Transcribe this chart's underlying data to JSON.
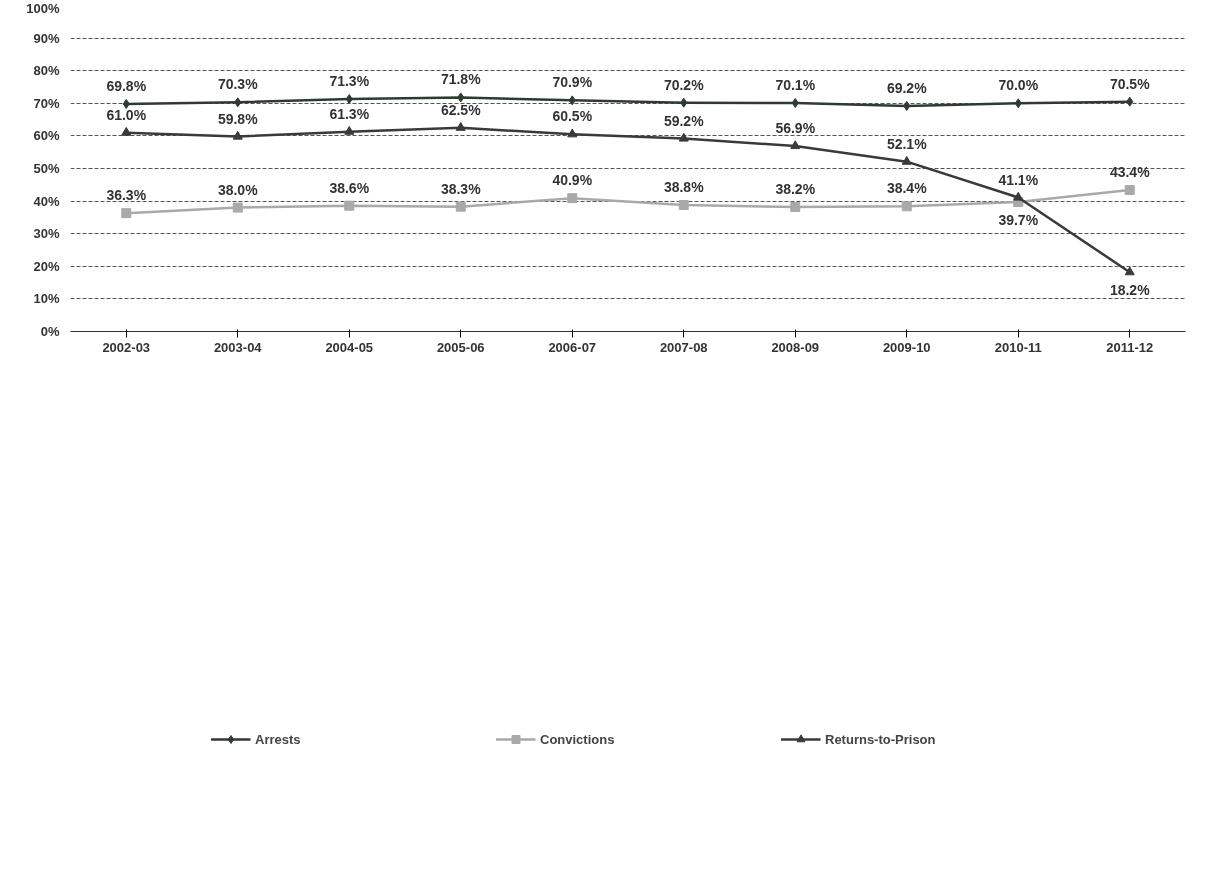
{
  "chart_data": {
    "type": "line",
    "categories": [
      "2002-03",
      "2003-04",
      "2004-05",
      "2005-06",
      "2006-07",
      "2007-08",
      "2008-09",
      "2009-10",
      "2010-11",
      "2011-12"
    ],
    "series": [
      {
        "name": "Arrests",
        "color": "#2f3a33",
        "marker": "diamond",
        "values": [
          69.8,
          70.3,
          71.3,
          71.8,
          70.9,
          70.2,
          70.1,
          69.2,
          70.0,
          70.5
        ],
        "value_labels": [
          "69.8%",
          "70.3%",
          "71.3%",
          "71.8%",
          "70.9%",
          "70.2%",
          "70.1%",
          "69.2%",
          "70.0%",
          "70.5%"
        ]
      },
      {
        "name": "Convictions",
        "color": "#a9a9a9",
        "marker": "square",
        "values": [
          36.3,
          38.0,
          38.6,
          38.3,
          40.9,
          38.8,
          38.2,
          38.4,
          39.7,
          43.4
        ],
        "value_labels": [
          "36.3%",
          "38.0%",
          "38.6%",
          "38.3%",
          "40.9%",
          "38.8%",
          "38.2%",
          "38.4%",
          "39.7%",
          "43.4%"
        ]
      },
      {
        "name": "Returns-to-Prison",
        "color": "#3a3a3a",
        "marker": "triangle",
        "values": [
          61.0,
          59.8,
          61.3,
          62.5,
          60.5,
          59.2,
          56.9,
          52.1,
          41.1,
          18.2
        ],
        "value_labels": [
          "61.0%",
          "59.8%",
          "61.3%",
          "62.5%",
          "60.5%",
          "59.2%",
          "56.9%",
          "52.1%",
          "41.1%",
          "18.2%"
        ]
      }
    ],
    "ylim": [
      0,
      100
    ],
    "yticks": [
      {
        "value": 0,
        "label": "0%"
      },
      {
        "value": 10,
        "label": "10%"
      },
      {
        "value": 20,
        "label": "20%"
      },
      {
        "value": 30,
        "label": "30%"
      },
      {
        "value": 40,
        "label": "40%"
      },
      {
        "value": 50,
        "label": "50%"
      },
      {
        "value": 60,
        "label": "60%"
      },
      {
        "value": 70,
        "label": "70%"
      },
      {
        "value": 80,
        "label": "80%"
      },
      {
        "value": 90,
        "label": "90%"
      },
      {
        "value": 100,
        "label": "100%"
      }
    ],
    "grid": "y",
    "legend": "bottom",
    "line_style": "solid"
  }
}
